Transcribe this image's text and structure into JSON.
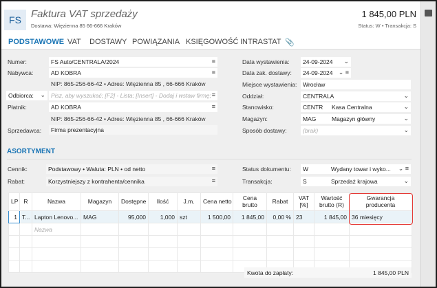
{
  "header": {
    "logo": "FS",
    "title": "Faktura VAT sprzedaży",
    "subtitle": "Dostawa: Więzienna  85  66-666 Kraków",
    "amount": "1 845,00 PLN",
    "status": "Status:  W  •  Transakcja:  S"
  },
  "tabs": [
    "PODSTAWOWE",
    "VAT",
    "DOSTAWY",
    "POWIĄZANIA",
    "KSIĘGOWOŚĆ",
    "INTRASTAT"
  ],
  "left": {
    "numer_label": "Numer:",
    "numer": "FS Auto/CENTRALA/2024",
    "nabywca_label": "Nabywca:",
    "nabywca": "AD KOBRA",
    "nabywca_info": "NIP:  865-256-66-42  •  Adres:  Więzienna  85 , 66-666 Kraków",
    "odbiorca_label": "Odbiorca:",
    "odbiorca_placeholder": "Pisz, aby wyszukać; [F2] - Lista; [Insert] - Dodaj i wstaw firmę;",
    "platnik_label": "Płatnik:",
    "platnik": "AD KOBRA",
    "platnik_info": "NIP:  865-256-66-42  •  Adres:  Więzienna  85 , 66-666 Kraków",
    "sprzedawca_label": "Sprzedawca:",
    "sprzedawca": "Firma prezentacyjna"
  },
  "right": {
    "data_wyst_label": "Data wystawienia:",
    "data_wyst": "24-09-2024",
    "data_dost_label": "Data zak. dostawy:",
    "data_dost": "24-09-2024",
    "miejsce_label": "Miejsce wystawienia:",
    "miejsce": "Wrocław",
    "oddzial_label": "Oddział:",
    "oddzial": "CENTRALA",
    "stanowisko_label": "Stanowisko:",
    "stanowisko_code": "CENTR",
    "stanowisko": "Kasa Centralna",
    "magazyn_label": "Magazyn:",
    "magazyn_code": "MAG",
    "magazyn": "Magazyn główny",
    "sposob_label": "Sposób dostawy:",
    "sposob": "(brak)"
  },
  "asortyment": {
    "title": "ASORTYMENT",
    "cennik_label": "Cennik:",
    "cennik": "Podstawowy • Waluta: PLN • od netto",
    "rabat_label": "Rabat:",
    "rabat": "Korzystniejszy z kontrahenta/cennika",
    "status_label": "Status dokumentu:",
    "status_code": "W",
    "status": "Wydany towar i wyko...",
    "transakcja_label": "Transakcja:",
    "transakcja_code": "S",
    "transakcja": "Sprzedaż krajowa"
  },
  "table": {
    "columns": [
      "LP",
      "R",
      "Nazwa",
      "Magazyn",
      "Dostępne",
      "Ilość",
      "J.m.",
      "Cena netto",
      "Cena brutto",
      "Rabat",
      "VAT [%]",
      "Wartość brutto (R)",
      "Gwarancja producenta"
    ],
    "rows": [
      [
        "1",
        "T...",
        "Lapton Lenovo...",
        "MAG",
        "95,000",
        "1,000",
        "szt",
        "1 500,00",
        "1 845,00",
        "0,00 %",
        "23",
        "1 845,00",
        "36 miesięcy"
      ]
    ],
    "new_row_placeholder": "Nazwa"
  },
  "footer": {
    "kwota_label": "Kwota do zapłaty:",
    "kwota": "1 845,00 PLN"
  },
  "colors": {
    "accent": "#1a75b5",
    "highlight": "#e53935"
  }
}
